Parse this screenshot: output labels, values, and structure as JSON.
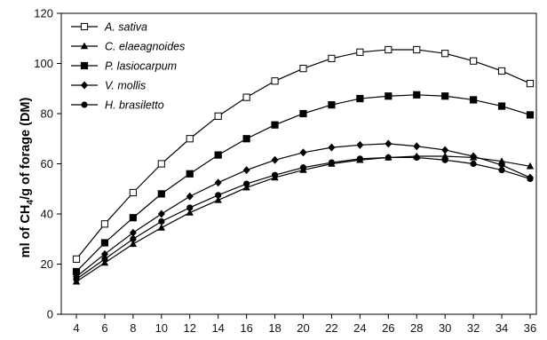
{
  "chart_data": {
    "type": "line",
    "title": "",
    "xlabel": "",
    "ylabel": "ml of CH4/g of forage (DM)",
    "ylabel_parts": {
      "prefix": "ml of CH",
      "subscript": "4",
      "suffix": "/g of forage (DM)"
    },
    "x": [
      4,
      6,
      8,
      10,
      12,
      14,
      16,
      18,
      20,
      22,
      24,
      26,
      28,
      30,
      32,
      34,
      36
    ],
    "xlim": [
      4,
      36
    ],
    "ylim": [
      0,
      120
    ],
    "yticks": [
      0,
      20,
      40,
      60,
      80,
      100,
      120
    ],
    "grid": false,
    "legend_position": "top-left",
    "series": [
      {
        "name": "A. sativa",
        "marker": "open-square",
        "color": "#000000",
        "values": [
          22,
          36,
          48.5,
          60,
          70,
          79,
          86.5,
          93,
          98,
          102,
          104.5,
          105.5,
          105.5,
          104,
          101,
          97,
          92
        ]
      },
      {
        "name": "C. elaeagnoides",
        "marker": "filled-triangle",
        "color": "#000000",
        "values": [
          13,
          20.5,
          28,
          34.5,
          40.5,
          45.5,
          50.5,
          54.5,
          57.5,
          60,
          61.5,
          62.5,
          63,
          63,
          62.5,
          61,
          59
        ]
      },
      {
        "name": "P. lasiocarpum",
        "marker": "filled-square",
        "color": "#000000",
        "values": [
          17,
          28.5,
          38.5,
          48,
          56,
          63.5,
          70,
          75.5,
          80,
          83.5,
          86,
          87,
          87.5,
          87,
          85.5,
          83,
          79.5
        ]
      },
      {
        "name": "V. mollis",
        "marker": "filled-diamond",
        "color": "#000000",
        "values": [
          15,
          24,
          32.5,
          40,
          47,
          52.5,
          57.5,
          61.5,
          64.5,
          66.5,
          67.5,
          68,
          67,
          65.5,
          63,
          59.5,
          54.5
        ]
      },
      {
        "name": "H. brasiletto",
        "marker": "filled-circle",
        "color": "#000000",
        "values": [
          14,
          22,
          30,
          37,
          42.5,
          47.5,
          52,
          55.5,
          58.5,
          60.5,
          62,
          62.5,
          62.5,
          61.5,
          60,
          57.5,
          54
        ]
      }
    ]
  }
}
